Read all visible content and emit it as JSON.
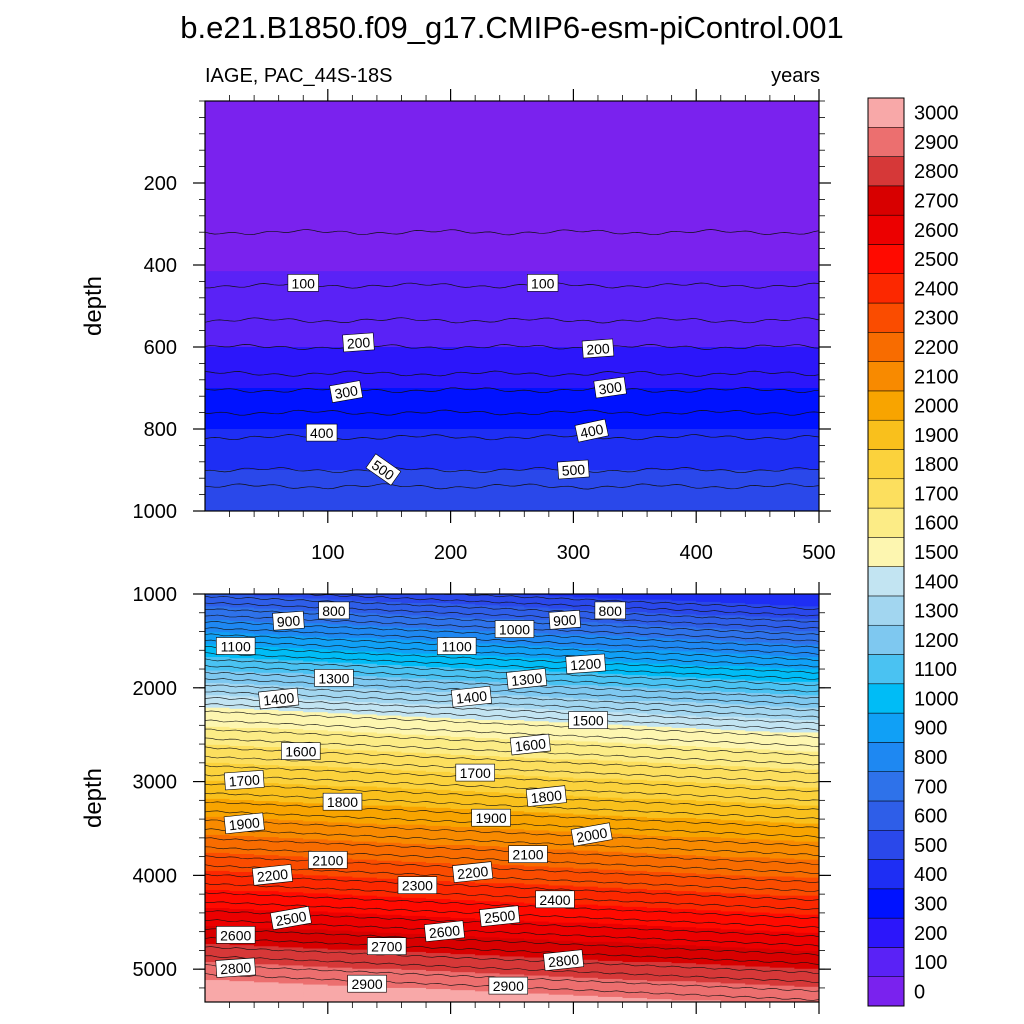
{
  "chart_data": {
    "type": "heatmap",
    "title": "b.e21.B1850.f09_g17.CMIP6-esm-piControl.001",
    "variable": "IAGE, PAC_44S-18S",
    "units": "years",
    "ylabel": "depth",
    "x_ticks": [
      "100",
      "200",
      "300",
      "400",
      "500"
    ],
    "xlim": [
      0,
      500
    ],
    "top_panel": {
      "ylim": [
        0,
        1000
      ],
      "y_ticks": [
        "200",
        "400",
        "600",
        "800",
        "1000"
      ],
      "contour_levels": [
        0,
        50,
        100,
        150,
        200,
        250,
        300,
        350,
        400,
        450,
        500,
        550,
        600
      ],
      "contour_labels": [
        {
          "text": "100",
          "x": 80,
          "y": 445
        },
        {
          "text": "100",
          "x": 275,
          "y": 445
        },
        {
          "text": "200",
          "x": 125,
          "y": 590
        },
        {
          "text": "200",
          "x": 320,
          "y": 605
        },
        {
          "text": "300",
          "x": 115,
          "y": 710
        },
        {
          "text": "300",
          "x": 330,
          "y": 700
        },
        {
          "text": "400",
          "x": 95,
          "y": 810
        },
        {
          "text": "400",
          "x": 315,
          "y": 805
        },
        {
          "text": "500",
          "x": 145,
          "y": 900
        },
        {
          "text": "500",
          "x": 300,
          "y": 900
        }
      ]
    },
    "bottom_panel": {
      "ylim": [
        1000,
        5350
      ],
      "y_ticks": [
        "1000",
        "2000",
        "3000",
        "4000",
        "5000"
      ],
      "contour_labels": [
        {
          "text": "800",
          "x": 105,
          "y": 1180
        },
        {
          "text": "900",
          "x": 68,
          "y": 1290
        },
        {
          "text": "1100",
          "x": 25,
          "y": 1560
        },
        {
          "text": "1300",
          "x": 105,
          "y": 1900
        },
        {
          "text": "1400",
          "x": 60,
          "y": 2120
        },
        {
          "text": "1600",
          "x": 78,
          "y": 2680
        },
        {
          "text": "1700",
          "x": 32,
          "y": 2990
        },
        {
          "text": "1800",
          "x": 112,
          "y": 3220
        },
        {
          "text": "1900",
          "x": 32,
          "y": 3450
        },
        {
          "text": "2100",
          "x": 100,
          "y": 3840
        },
        {
          "text": "2200",
          "x": 55,
          "y": 4000
        },
        {
          "text": "2300",
          "x": 173,
          "y": 4110
        },
        {
          "text": "2500",
          "x": 70,
          "y": 4460
        },
        {
          "text": "2600",
          "x": 25,
          "y": 4640
        },
        {
          "text": "2600",
          "x": 195,
          "y": 4600
        },
        {
          "text": "2700",
          "x": 148,
          "y": 4760
        },
        {
          "text": "2800",
          "x": 25,
          "y": 4990
        },
        {
          "text": "2900",
          "x": 132,
          "y": 5160
        },
        {
          "text": "1100",
          "x": 205,
          "y": 1560
        },
        {
          "text": "1000",
          "x": 252,
          "y": 1380
        },
        {
          "text": "900",
          "x": 293,
          "y": 1280
        },
        {
          "text": "800",
          "x": 330,
          "y": 1180
        },
        {
          "text": "1200",
          "x": 310,
          "y": 1750
        },
        {
          "text": "1300",
          "x": 262,
          "y": 1910
        },
        {
          "text": "1400",
          "x": 217,
          "y": 2100
        },
        {
          "text": "1500",
          "x": 312,
          "y": 2350
        },
        {
          "text": "1600",
          "x": 265,
          "y": 2610
        },
        {
          "text": "1700",
          "x": 220,
          "y": 2910
        },
        {
          "text": "1800",
          "x": 278,
          "y": 3160
        },
        {
          "text": "1900",
          "x": 233,
          "y": 3390
        },
        {
          "text": "2000",
          "x": 315,
          "y": 3570
        },
        {
          "text": "2100",
          "x": 263,
          "y": 3780
        },
        {
          "text": "2200",
          "x": 218,
          "y": 3970
        },
        {
          "text": "2400",
          "x": 285,
          "y": 4260
        },
        {
          "text": "2500",
          "x": 240,
          "y": 4440
        },
        {
          "text": "2800",
          "x": 292,
          "y": 4910
        },
        {
          "text": "2900",
          "x": 247,
          "y": 5180
        }
      ]
    },
    "colorbar": {
      "labels": [
        "0",
        "100",
        "200",
        "300",
        "400",
        "500",
        "600",
        "700",
        "800",
        "900",
        "1000",
        "1100",
        "1200",
        "1300",
        "1400",
        "1500",
        "1600",
        "1700",
        "1800",
        "1900",
        "2000",
        "2100",
        "2200",
        "2300",
        "2400",
        "2500",
        "2600",
        "2700",
        "2800",
        "2900",
        "3000"
      ],
      "min": 0,
      "max": 3100,
      "step": 100
    }
  }
}
